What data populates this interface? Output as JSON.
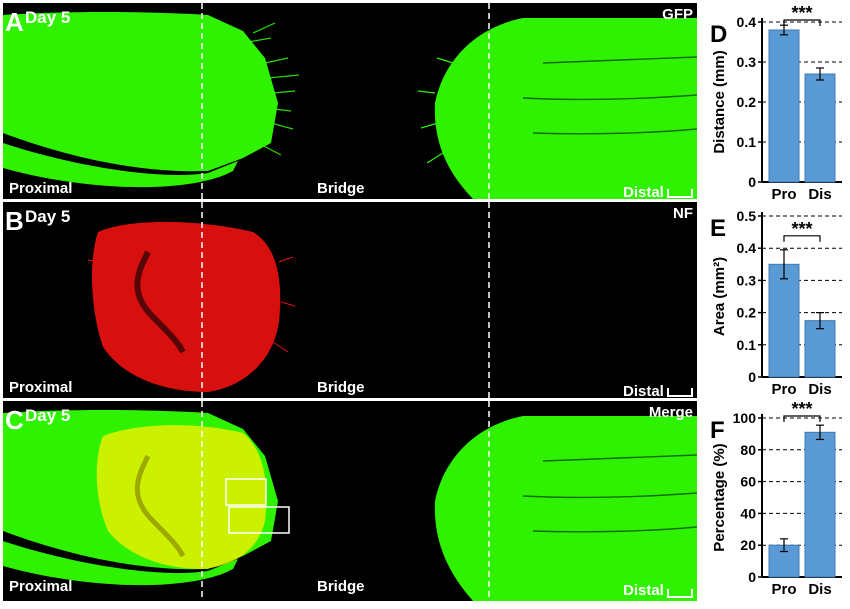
{
  "panels": [
    {
      "letter": "A",
      "day": "Day 5",
      "channel": "GFP",
      "left": "Proximal",
      "center": "Bridge",
      "right": "Distal"
    },
    {
      "letter": "B",
      "day": "Day 5",
      "channel": "NF",
      "left": "Proximal",
      "center": "Bridge",
      "right": "Distal"
    },
    {
      "letter": "C",
      "day": "Day 5",
      "channel": "Merge",
      "left": "Proximal",
      "center": "Bridge",
      "right": "Distal"
    }
  ],
  "colors": {
    "gfp": "#2ef200",
    "nf": "#e31010",
    "merge": "#e6f000",
    "bar": "#5b9bd5"
  },
  "chart_data": [
    {
      "type": "bar",
      "letter": "D",
      "categories": [
        "Pro",
        "Dis"
      ],
      "values": [
        0.38,
        0.27
      ],
      "errors": [
        0.012,
        0.015
      ],
      "ylabel": "Distance (mm)",
      "ylim": [
        0,
        0.4
      ],
      "yticks": [
        "0",
        "0.1",
        "0.2",
        "0.3",
        "0.4"
      ],
      "significance": "***",
      "grid": "dashed"
    },
    {
      "type": "bar",
      "letter": "E",
      "categories": [
        "Pro",
        "Dis"
      ],
      "values": [
        0.35,
        0.175
      ],
      "errors": [
        0.045,
        0.025
      ],
      "ylabel": "Area (mm²)",
      "ylim": [
        0,
        0.5
      ],
      "yticks": [
        "0",
        "0.1",
        "0.2",
        "0.3",
        "0.4",
        "0.5"
      ],
      "significance": "***",
      "grid": "dashed"
    },
    {
      "type": "bar",
      "letter": "F",
      "categories": [
        "Pro",
        "Dis"
      ],
      "values": [
        20,
        91
      ],
      "errors": [
        4,
        4.5
      ],
      "ylabel": "Percentage (%)",
      "ylim": [
        0,
        100
      ],
      "yticks": [
        "0",
        "20",
        "40",
        "60",
        "80",
        "100"
      ],
      "significance": "***",
      "grid": "dashed"
    }
  ]
}
